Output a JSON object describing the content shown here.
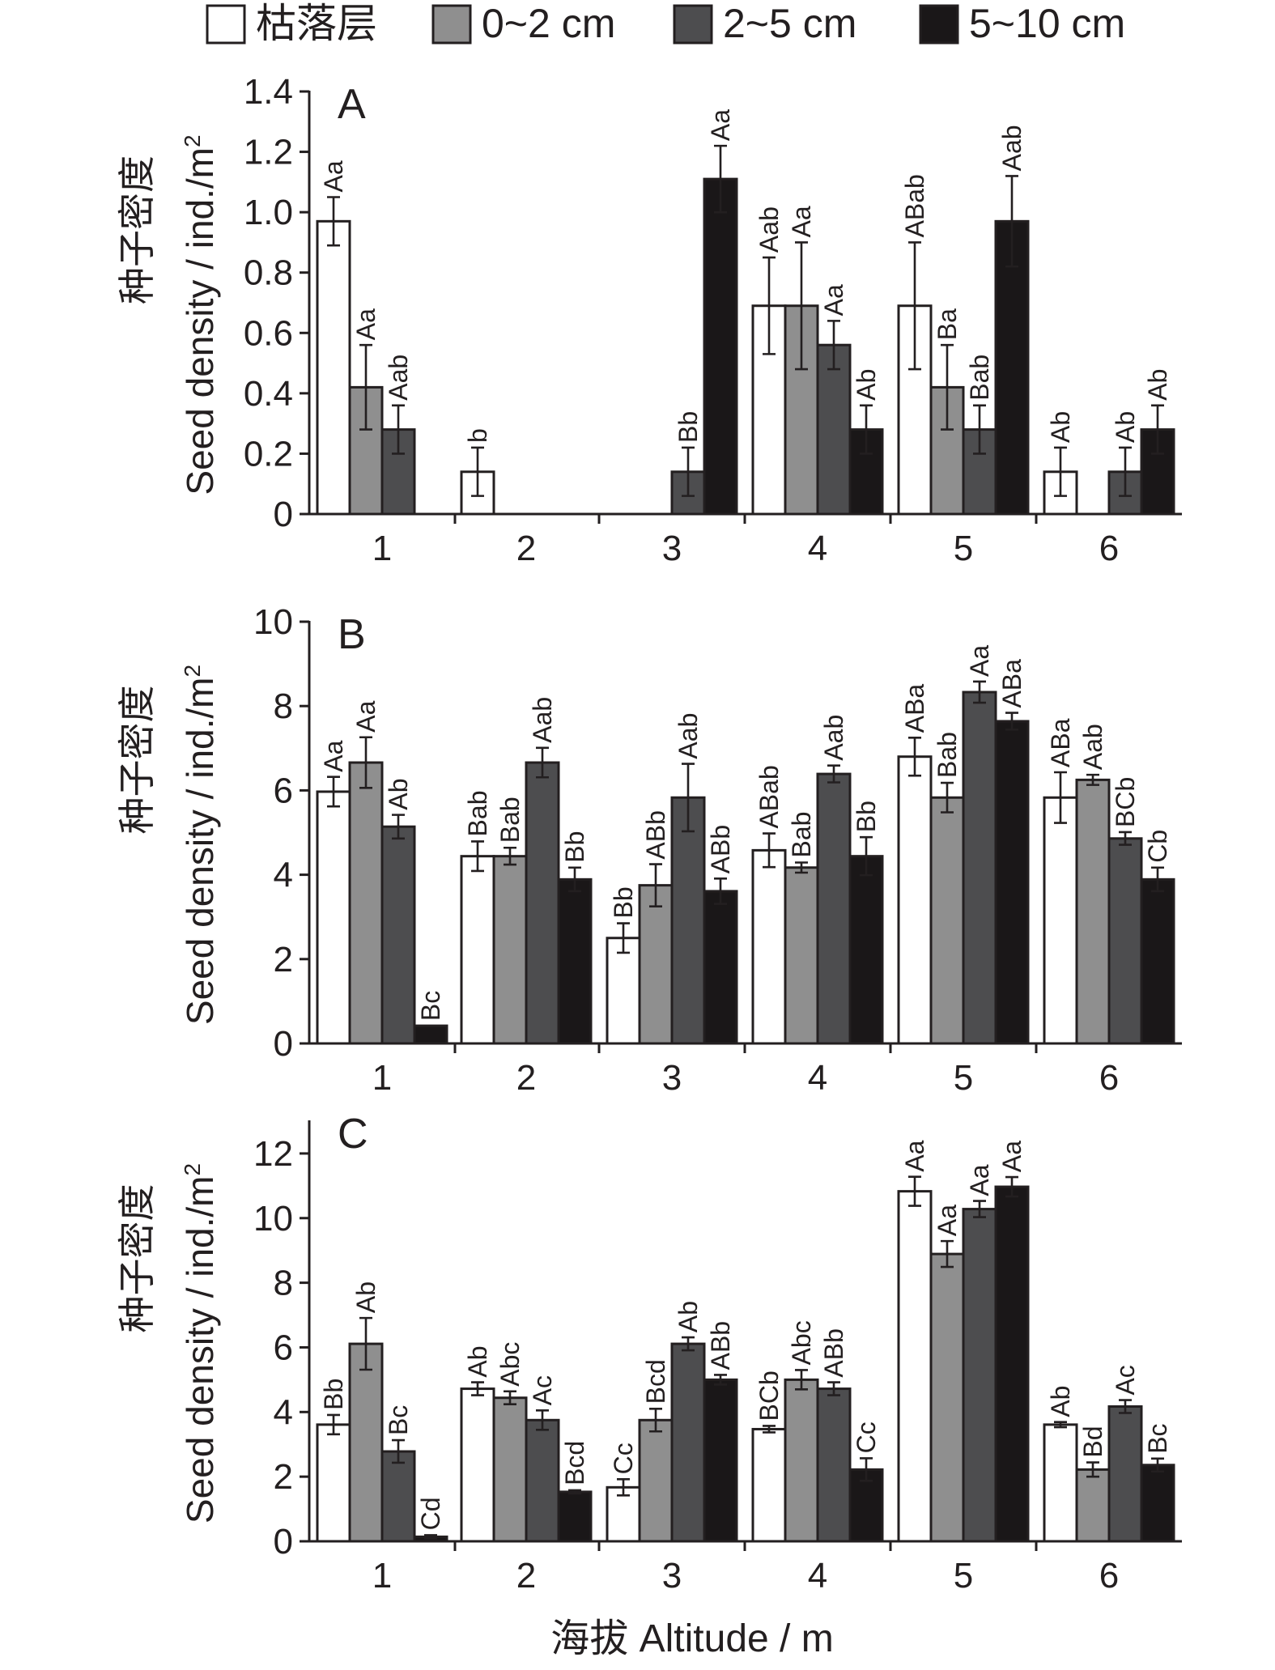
{
  "colors": {
    "axis": "#231f20",
    "series": [
      "#ffffff",
      "#8f8f8f",
      "#4d4d4f",
      "#1a1718"
    ]
  },
  "legend": [
    "枯落层",
    "0~2 cm",
    "2~5 cm",
    "5~10 cm"
  ],
  "x_axis_label": "海拔 Altitude / m",
  "y_axis_label_cn": "种子密度",
  "y_axis_label_en": "Seed density / ind./m",
  "y_axis_label_sup": "2",
  "chart_data": [
    {
      "type": "bar",
      "panel": "A",
      "categories": [
        "1",
        "2",
        "3",
        "4",
        "5",
        "6"
      ],
      "ylim": [
        0,
        1.4
      ],
      "yticks": [
        0,
        0.2,
        0.4,
        0.6,
        0.8,
        1.0,
        1.2,
        1.4
      ],
      "ytick_labels": [
        "0",
        "0.2",
        "0.4",
        "0.6",
        "0.8",
        "1.0",
        "1.2",
        "1.4"
      ],
      "series": [
        {
          "name": "枯落层",
          "values": [
            0.97,
            0.14,
            0,
            0.69,
            0.69,
            0.14
          ],
          "errors": [
            0.08,
            0.08,
            0,
            0.16,
            0.21,
            0.08
          ],
          "labels": [
            "Aa",
            "b",
            "",
            "Aab",
            "ABab",
            "Ab"
          ]
        },
        {
          "name": "0~2 cm",
          "values": [
            0.42,
            0,
            0,
            0.69,
            0.42,
            0
          ],
          "errors": [
            0.14,
            0,
            0,
            0.21,
            0.14,
            0
          ],
          "labels": [
            "Aa",
            "",
            "",
            "Aa",
            "Ba",
            ""
          ]
        },
        {
          "name": "2~5 cm",
          "values": [
            0.28,
            0,
            0.14,
            0.56,
            0.28,
            0.14
          ],
          "errors": [
            0.08,
            0,
            0.08,
            0.08,
            0.08,
            0.08
          ],
          "labels": [
            "Aab",
            "",
            "Bb",
            "Aa",
            "Bab",
            "Ab"
          ]
        },
        {
          "name": "5~10 cm",
          "values": [
            0,
            0,
            1.11,
            0.28,
            0.97,
            0.28
          ],
          "errors": [
            0,
            0,
            0.11,
            0.08,
            0.15,
            0.08
          ],
          "labels": [
            "",
            "",
            "Aa",
            "Ab",
            "Aab",
            "Ab"
          ]
        }
      ]
    },
    {
      "type": "bar",
      "panel": "B",
      "categories": [
        "1",
        "2",
        "3",
        "4",
        "5",
        "6"
      ],
      "ylim": [
        0,
        10
      ],
      "yticks": [
        0,
        2,
        4,
        6,
        8,
        10
      ],
      "ytick_labels": [
        "0",
        "2",
        "4",
        "6",
        "8",
        "10"
      ],
      "series": [
        {
          "name": "枯落层",
          "values": [
            5.97,
            4.44,
            2.5,
            4.58,
            6.8,
            5.83
          ],
          "errors": [
            0.35,
            0.35,
            0.35,
            0.4,
            0.45,
            0.6
          ],
          "labels": [
            "Aa",
            "Bab",
            "Bb",
            "ABab",
            "ABa",
            "ABa"
          ]
        },
        {
          "name": "0~2 cm",
          "values": [
            6.66,
            4.44,
            3.75,
            4.17,
            5.83,
            6.25
          ],
          "errors": [
            0.6,
            0.2,
            0.5,
            0.12,
            0.35,
            0.12
          ],
          "labels": [
            "Aa",
            "Bab",
            "ABb",
            "Bab",
            "Bab",
            "Aab"
          ]
        },
        {
          "name": "2~5 cm",
          "values": [
            5.14,
            6.66,
            5.83,
            6.39,
            8.33,
            4.86
          ],
          "errors": [
            0.28,
            0.35,
            0.8,
            0.2,
            0.25,
            0.15
          ],
          "labels": [
            "Ab",
            "Aab",
            "Aab",
            "Aab",
            "Aa",
            "BCb"
          ]
        },
        {
          "name": "5~10 cm",
          "values": [
            0.42,
            3.89,
            3.61,
            4.44,
            7.64,
            3.89
          ],
          "errors": [
            0,
            0.28,
            0.3,
            0.45,
            0.2,
            0.28
          ],
          "labels": [
            "Bc",
            "Bb",
            "ABb",
            "Bb",
            "ABa",
            "Cb"
          ]
        }
      ]
    },
    {
      "type": "bar",
      "panel": "C",
      "categories": [
        "1",
        "2",
        "3",
        "4",
        "5",
        "6"
      ],
      "ylim": [
        0,
        13
      ],
      "yticks": [
        0,
        2,
        4,
        6,
        8,
        10,
        12
      ],
      "ytick_labels": [
        "0",
        "2",
        "4",
        "6",
        "8",
        "10",
        "12"
      ],
      "series": [
        {
          "name": "枯落层",
          "values": [
            3.61,
            4.72,
            1.67,
            3.47,
            10.83,
            3.61
          ],
          "errors": [
            0.3,
            0.2,
            0.25,
            0.1,
            0.45,
            0.08
          ],
          "labels": [
            "Bb",
            "Ab",
            "Cc",
            "BCb",
            "Aa",
            "Ab"
          ]
        },
        {
          "name": "0~2 cm",
          "values": [
            6.11,
            4.44,
            3.75,
            5.0,
            8.89,
            2.22
          ],
          "errors": [
            0.8,
            0.2,
            0.35,
            0.3,
            0.4,
            0.22
          ],
          "labels": [
            "Ab",
            "Abc",
            "Bcd",
            "Abc",
            "Aa",
            "Bd"
          ]
        },
        {
          "name": "2~5 cm",
          "values": [
            2.78,
            3.75,
            6.11,
            4.72,
            10.28,
            4.17
          ],
          "errors": [
            0.35,
            0.3,
            0.2,
            0.2,
            0.25,
            0.2
          ],
          "labels": [
            "Bc",
            "Ac",
            "Ab",
            "ABb",
            "Aa",
            "Ac"
          ]
        },
        {
          "name": "5~10 cm",
          "values": [
            0.14,
            1.53,
            5.0,
            2.22,
            10.97,
            2.36
          ],
          "errors": [
            0.05,
            0.05,
            0.15,
            0.35,
            0.3,
            0.2
          ],
          "labels": [
            "Cd",
            "Bcd",
            "ABb",
            "Cc",
            "Aa",
            "Bc"
          ]
        }
      ]
    }
  ]
}
